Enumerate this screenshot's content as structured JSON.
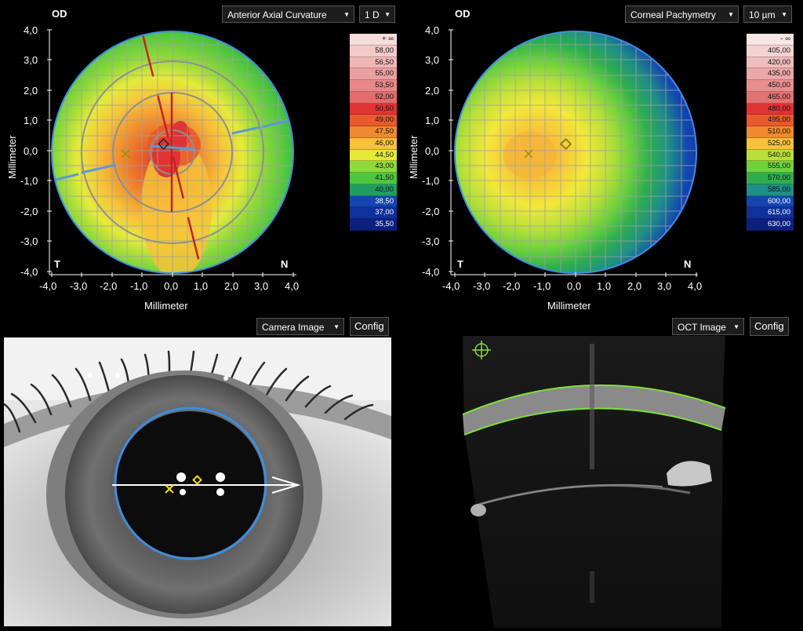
{
  "left_map": {
    "eye": "OD",
    "map_type": "Anterior Axial Curvature",
    "step": "1 D",
    "ylabel": "Millimeter",
    "xlabel": "Millimeter",
    "y_ticks": [
      "4,0",
      "3,0",
      "2,0",
      "1,0",
      "0,0",
      "-1,0",
      "-2,0",
      "-3,0",
      "-4,0"
    ],
    "x_ticks": [
      "-4,0",
      "-3,0",
      "-2,0",
      "-1,0",
      "0,0",
      "1,0",
      "2,0",
      "3,0",
      "4,0"
    ],
    "corner_left": "T",
    "corner_right": "N",
    "scale": [
      {
        "label": "+ ∞",
        "color": "#f7dede"
      },
      {
        "label": "58,00",
        "color": "#f4c9c9"
      },
      {
        "label": "56,50",
        "color": "#f0b5b5"
      },
      {
        "label": "55,00",
        "color": "#ec9f9f"
      },
      {
        "label": "53,50",
        "color": "#e88787"
      },
      {
        "label": "52,00",
        "color": "#e46c6c"
      },
      {
        "label": "50,50",
        "color": "#e03434"
      },
      {
        "label": "49,00",
        "color": "#e85a2b"
      },
      {
        "label": "47,50",
        "color": "#f08a2e"
      },
      {
        "label": "46,00",
        "color": "#f7c23a"
      },
      {
        "label": "44,50",
        "color": "#e5ea3a"
      },
      {
        "label": "43,00",
        "color": "#8fd93a"
      },
      {
        "label": "41,50",
        "color": "#4fc63f"
      },
      {
        "label": "40,00",
        "color": "#1f9e63"
      },
      {
        "label": "38,50",
        "color": "#1445b0"
      },
      {
        "label": "37,00",
        "color": "#10309a"
      },
      {
        "label": "35,50",
        "color": "#0d2080"
      }
    ]
  },
  "right_map": {
    "eye": "OD",
    "map_type": "Corneal Pachymetry",
    "step": "10 µm",
    "ylabel": "Millimeter",
    "xlabel": "Millimeter",
    "y_ticks": [
      "4,0",
      "3,0",
      "2,0",
      "1,0",
      "0,0",
      "-1,0",
      "-2,0",
      "-3,0",
      "-4,0"
    ],
    "x_ticks": [
      "-4,0",
      "-3,0",
      "-2,0",
      "-1,0",
      "0,0",
      "1,0",
      "2,0",
      "3,0",
      "4,0"
    ],
    "corner_left": "T",
    "corner_right": "N",
    "scale": [
      {
        "label": "- ∞",
        "color": "#f9e6e6"
      },
      {
        "label": "405,00",
        "color": "#f5d2d2"
      },
      {
        "label": "420,00",
        "color": "#f1bcbc"
      },
      {
        "label": "435,00",
        "color": "#eca6a6"
      },
      {
        "label": "450,00",
        "color": "#e88e8e"
      },
      {
        "label": "465,00",
        "color": "#e47272"
      },
      {
        "label": "480,00",
        "color": "#e03434"
      },
      {
        "label": "495,00",
        "color": "#e85a2b"
      },
      {
        "label": "510,00",
        "color": "#f08a2e"
      },
      {
        "label": "525,00",
        "color": "#f7c23a"
      },
      {
        "label": "540,00",
        "color": "#b8e03a"
      },
      {
        "label": "555,00",
        "color": "#6fd23c"
      },
      {
        "label": "570,00",
        "color": "#2fae4f"
      },
      {
        "label": "585,00",
        "color": "#1e8e88"
      },
      {
        "label": "600,00",
        "color": "#1445b0"
      },
      {
        "label": "615,00",
        "color": "#10309a"
      },
      {
        "label": "630,00",
        "color": "#0d2080"
      }
    ]
  },
  "camera": {
    "view_select": "Camera Image",
    "config_label": "Config"
  },
  "oct": {
    "view_select": "OCT Image",
    "config_label": "Config"
  },
  "colors": {
    "accent_blue": "#3e8de0",
    "marker_yellow": "#f2e000",
    "oct_green": "#7fe03a"
  }
}
